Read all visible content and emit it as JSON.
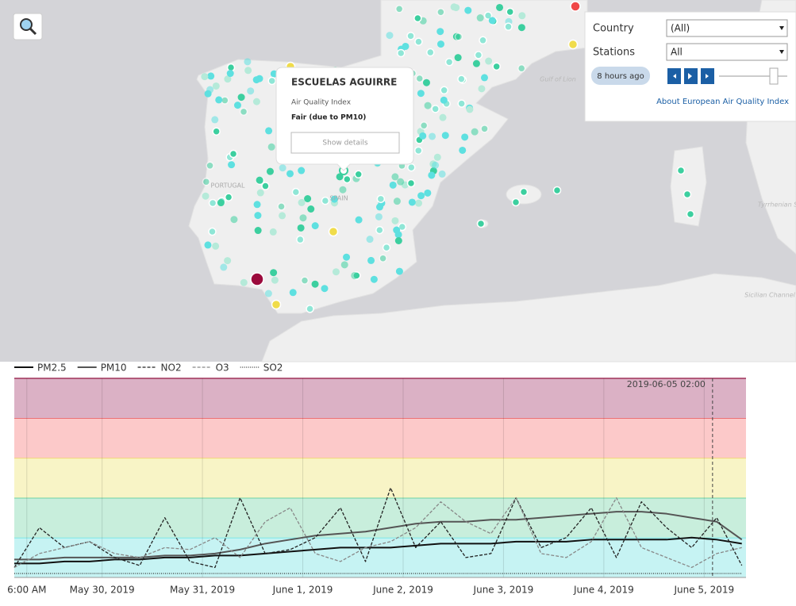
{
  "map": {
    "labels": [
      "Gulf of Lion",
      "PORTUGAL",
      "SPAIN",
      "Tyrrhenian Sea",
      "Sicilian Channel"
    ]
  },
  "controls": {
    "country_label": "Country",
    "country_value": "(All)",
    "stations_label": "Stations",
    "stations_value": "All",
    "time": "8 hours ago",
    "link": "About European Air Quality Index"
  },
  "popup": {
    "title": "ESCUELAS AGUIRRE",
    "subtitle": "Air Quality Index",
    "status": "Fair (due to PM10)",
    "button": "Show details"
  },
  "chart_data": {
    "type": "line",
    "annotation": "2019-06-05 02:00",
    "annotation_x": 164,
    "x": [
      -3,
      3,
      9,
      15,
      21,
      27,
      33,
      39,
      45,
      51,
      57,
      63,
      69,
      75,
      81,
      87,
      93,
      99,
      105,
      111,
      117,
      123,
      129,
      135,
      141,
      147,
      153,
      159,
      165,
      171
    ],
    "xlim": [
      -3,
      172
    ],
    "xticks": [
      {
        "value": 0,
        "label": "6:00 AM"
      },
      {
        "value": 18,
        "label": "May 30, 2019"
      },
      {
        "value": 42,
        "label": "May 31, 2019"
      },
      {
        "value": 66,
        "label": "June 1, 2019"
      },
      {
        "value": 90,
        "label": "June 2, 2019"
      },
      {
        "value": 114,
        "label": "June 3, 2019"
      },
      {
        "value": 138,
        "label": "June 4, 2019"
      },
      {
        "value": 162,
        "label": "June 5, 2019"
      }
    ],
    "ylim": [
      0,
      100
    ],
    "bands": [
      {
        "from": 0,
        "to": 20,
        "color": "#c6f3f3",
        "line": "#5fe0e6"
      },
      {
        "from": 20,
        "to": 40,
        "color": "#c8eedc",
        "line": "#4cc79a"
      },
      {
        "from": 40,
        "to": 60,
        "color": "#f8f4c6",
        "line": "#f0dc5a"
      },
      {
        "from": 60,
        "to": 80,
        "color": "#fcc9c9",
        "line": "#f06262"
      },
      {
        "from": 80,
        "to": 100,
        "color": "#dbb1c5",
        "line": "#a0325a"
      }
    ],
    "series": [
      {
        "name": "PM2.5",
        "color": "#111111",
        "dash": "",
        "width": 2,
        "values": [
          7,
          7,
          8,
          8,
          9,
          9,
          10,
          10,
          11,
          11,
          12,
          13,
          14,
          15,
          15,
          15,
          16,
          17,
          17,
          17,
          18,
          18,
          18,
          19,
          19,
          19,
          19,
          20,
          19,
          17
        ]
      },
      {
        "name": "PM10",
        "color": "#555555",
        "dash": "",
        "width": 2,
        "values": [
          9,
          9,
          10,
          10,
          10,
          10,
          11,
          11,
          12,
          14,
          17,
          19,
          21,
          22,
          23,
          25,
          27,
          28,
          28,
          29,
          29,
          30,
          31,
          32,
          33,
          33,
          32,
          30,
          28,
          19
        ]
      },
      {
        "name": "NO2",
        "color": "#222222",
        "dash": "4 2",
        "width": 1.3,
        "values": [
          5,
          25,
          15,
          18,
          10,
          6,
          30,
          8,
          5,
          40,
          12,
          14,
          20,
          35,
          8,
          45,
          15,
          28,
          10,
          12,
          40,
          15,
          20,
          35,
          10,
          38,
          25,
          15,
          30,
          6
        ]
      },
      {
        "name": "O3",
        "color": "#888888",
        "dash": "4 2",
        "width": 1.3,
        "values": [
          5,
          12,
          15,
          18,
          12,
          10,
          15,
          14,
          20,
          10,
          28,
          35,
          12,
          8,
          15,
          18,
          25,
          38,
          28,
          22,
          40,
          12,
          10,
          18,
          40,
          15,
          10,
          5,
          12,
          15
        ]
      },
      {
        "name": "SO2",
        "color": "#333333",
        "dash": "1 1.5",
        "width": 1.2,
        "values": [
          2,
          2,
          2,
          2,
          2,
          2,
          2,
          2,
          2,
          2,
          2,
          2,
          2,
          2,
          2,
          2,
          2,
          2,
          2,
          2,
          2,
          2,
          2,
          2,
          2,
          2,
          2,
          2,
          2,
          2
        ]
      }
    ]
  }
}
